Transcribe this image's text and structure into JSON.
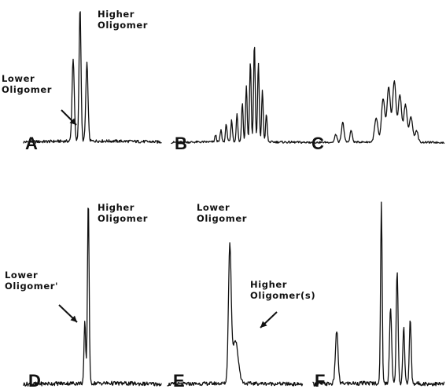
{
  "chart_data": [
    {
      "panel": "A",
      "type": "line",
      "annotations": [
        {
          "id": "lower",
          "lines": [
            "Lower",
            "Oligomer"
          ],
          "arrow": true
        },
        {
          "id": "higher",
          "lines": [
            "Higher",
            "Oligomer"
          ],
          "arrow": false
        }
      ],
      "baseline": 0.06,
      "peaks": [
        {
          "x": 0.36,
          "h": 0.62,
          "w": 0.008
        },
        {
          "x": 0.41,
          "h": 1.0,
          "w": 0.007
        },
        {
          "x": 0.46,
          "h": 0.58,
          "w": 0.008
        }
      ]
    },
    {
      "panel": "B",
      "type": "line",
      "annotations": [],
      "baseline": 0.05,
      "peaks": [
        {
          "x": 0.33,
          "h": 0.07,
          "w": 0.006
        },
        {
          "x": 0.37,
          "h": 0.12,
          "w": 0.006
        },
        {
          "x": 0.41,
          "h": 0.18,
          "w": 0.006
        },
        {
          "x": 0.45,
          "h": 0.22,
          "w": 0.006
        },
        {
          "x": 0.49,
          "h": 0.28,
          "w": 0.006
        },
        {
          "x": 0.53,
          "h": 0.4,
          "w": 0.006
        },
        {
          "x": 0.56,
          "h": 0.57,
          "w": 0.006
        },
        {
          "x": 0.59,
          "h": 0.82,
          "w": 0.006
        },
        {
          "x": 0.62,
          "h": 1.0,
          "w": 0.006
        },
        {
          "x": 0.65,
          "h": 0.8,
          "w": 0.006
        },
        {
          "x": 0.68,
          "h": 0.52,
          "w": 0.006
        },
        {
          "x": 0.71,
          "h": 0.28,
          "w": 0.006
        }
      ]
    },
    {
      "panel": "C",
      "type": "line",
      "annotations": [],
      "baseline": 0.05,
      "peaks": [
        {
          "x": 0.22,
          "h": 0.1,
          "w": 0.008
        },
        {
          "x": 0.27,
          "h": 0.25,
          "w": 0.009
        },
        {
          "x": 0.33,
          "h": 0.15,
          "w": 0.008
        },
        {
          "x": 0.51,
          "h": 0.3,
          "w": 0.012
        },
        {
          "x": 0.56,
          "h": 0.55,
          "w": 0.012
        },
        {
          "x": 0.6,
          "h": 0.7,
          "w": 0.012
        },
        {
          "x": 0.64,
          "h": 0.78,
          "w": 0.012
        },
        {
          "x": 0.68,
          "h": 0.6,
          "w": 0.012
        },
        {
          "x": 0.72,
          "h": 0.48,
          "w": 0.012
        },
        {
          "x": 0.76,
          "h": 0.32,
          "w": 0.012
        },
        {
          "x": 0.8,
          "h": 0.15,
          "w": 0.01
        }
      ]
    },
    {
      "panel": "D",
      "type": "line",
      "annotations": [
        {
          "id": "lower",
          "lines": [
            "Lower",
            "Oligomer'"
          ],
          "arrow": true
        },
        {
          "id": "higher",
          "lines": [
            "Higher",
            "Oligomer"
          ],
          "arrow": false
        }
      ],
      "baseline": 0.04,
      "peaks": [
        {
          "x": 0.445,
          "h": 0.33,
          "w": 0.006
        },
        {
          "x": 0.47,
          "h": 1.0,
          "w": 0.006
        }
      ]
    },
    {
      "panel": "E",
      "type": "line",
      "annotations": [
        {
          "id": "lower",
          "lines": [
            "Lower",
            "Oligomer"
          ],
          "arrow": false
        },
        {
          "id": "higher",
          "lines": [
            "Higher",
            "Oligomer(s)"
          ],
          "arrow": true
        }
      ],
      "baseline": 0.04,
      "peaks": [
        {
          "x": 0.46,
          "h": 0.8,
          "w": 0.01
        },
        {
          "x": 0.5,
          "h": 0.26,
          "w": 0.022
        }
      ]
    },
    {
      "panel": "F",
      "type": "line",
      "annotations": [],
      "baseline": 0.04,
      "peaks": [
        {
          "x": 0.18,
          "h": 0.28,
          "w": 0.01
        },
        {
          "x": 0.52,
          "h": 0.96,
          "w": 0.006
        },
        {
          "x": 0.59,
          "h": 0.4,
          "w": 0.008
        },
        {
          "x": 0.64,
          "h": 0.6,
          "w": 0.007
        },
        {
          "x": 0.69,
          "h": 0.3,
          "w": 0.007
        },
        {
          "x": 0.74,
          "h": 0.34,
          "w": 0.007
        }
      ]
    }
  ]
}
